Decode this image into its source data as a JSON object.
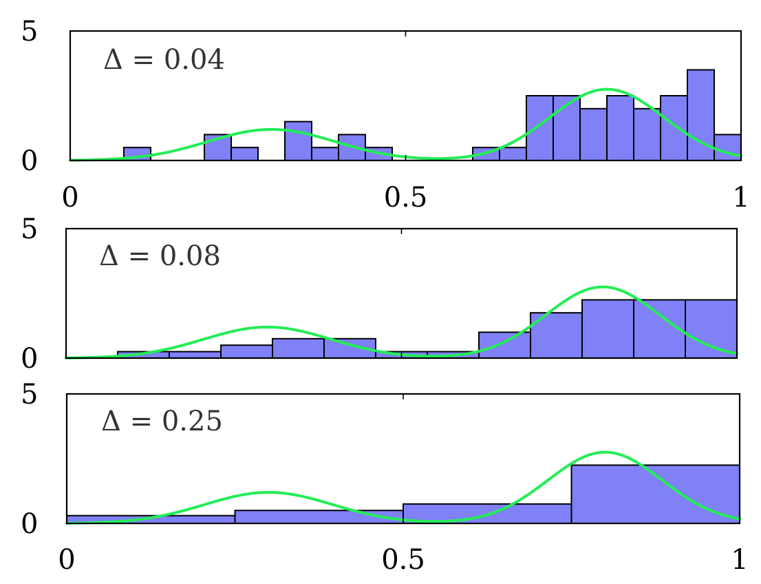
{
  "colors": {
    "bar": "#8080f7",
    "curve": "#22ee55",
    "axis": "#000000"
  },
  "chart_data": [
    {
      "type": "bar",
      "title": "Δ = 0.04",
      "xlim": [
        0,
        1
      ],
      "ylim": [
        0,
        5
      ],
      "xticks": [
        0,
        0.5,
        1
      ],
      "xtick_labels": [
        "0",
        "0.5",
        "1"
      ],
      "yticks": [
        0,
        5
      ],
      "ytick_labels": [
        "0",
        "5"
      ],
      "bin_width": 0.04,
      "bins": [
        {
          "x0": 0.08,
          "x1": 0.12,
          "y": 0.5
        },
        {
          "x0": 0.2,
          "x1": 0.24,
          "y": 1.0
        },
        {
          "x0": 0.24,
          "x1": 0.28,
          "y": 0.5
        },
        {
          "x0": 0.32,
          "x1": 0.36,
          "y": 1.5
        },
        {
          "x0": 0.36,
          "x1": 0.4,
          "y": 0.5
        },
        {
          "x0": 0.4,
          "x1": 0.44,
          "y": 1.0
        },
        {
          "x0": 0.44,
          "x1": 0.48,
          "y": 0.5
        },
        {
          "x0": 0.6,
          "x1": 0.64,
          "y": 0.5
        },
        {
          "x0": 0.64,
          "x1": 0.68,
          "y": 0.5
        },
        {
          "x0": 0.68,
          "x1": 0.72,
          "y": 2.5
        },
        {
          "x0": 0.72,
          "x1": 0.76,
          "y": 2.5
        },
        {
          "x0": 0.76,
          "x1": 0.8,
          "y": 2.0
        },
        {
          "x0": 0.8,
          "x1": 0.84,
          "y": 2.5
        },
        {
          "x0": 0.84,
          "x1": 0.88,
          "y": 2.0
        },
        {
          "x0": 0.88,
          "x1": 0.92,
          "y": 2.5
        },
        {
          "x0": 0.92,
          "x1": 0.96,
          "y": 3.5
        },
        {
          "x0": 0.96,
          "x1": 1.0,
          "y": 1.0
        }
      ]
    },
    {
      "type": "bar",
      "title": "Δ = 0.08",
      "xlim": [
        0,
        1
      ],
      "ylim": [
        0,
        5
      ],
      "xticks": [
        0,
        0.5,
        1
      ],
      "xtick_labels": [],
      "yticks": [
        0,
        5
      ],
      "ytick_labels": [
        "0",
        "5"
      ],
      "bin_width": 0.08,
      "bins": [
        {
          "x0": 0.0769,
          "x1": 0.1538,
          "y": 0.25
        },
        {
          "x0": 0.1538,
          "x1": 0.2308,
          "y": 0.25
        },
        {
          "x0": 0.2308,
          "x1": 0.3077,
          "y": 0.5
        },
        {
          "x0": 0.3077,
          "x1": 0.3846,
          "y": 0.75
        },
        {
          "x0": 0.3846,
          "x1": 0.4615,
          "y": 0.75
        },
        {
          "x0": 0.4615,
          "x1": 0.5385,
          "y": 0.25
        },
        {
          "x0": 0.5385,
          "x1": 0.6154,
          "y": 0.25
        },
        {
          "x0": 0.6154,
          "x1": 0.6923,
          "y": 1.0
        },
        {
          "x0": 0.6923,
          "x1": 0.7692,
          "y": 1.75
        },
        {
          "x0": 0.7692,
          "x1": 0.8462,
          "y": 2.25
        },
        {
          "x0": 0.8462,
          "x1": 0.9231,
          "y": 2.25
        },
        {
          "x0": 0.9231,
          "x1": 1.0,
          "y": 2.25
        }
      ]
    },
    {
      "type": "bar",
      "title": "Δ = 0.25",
      "xlim": [
        0,
        1
      ],
      "ylim": [
        0,
        5
      ],
      "xticks": [
        0,
        0.5,
        1
      ],
      "xtick_labels": [
        "0",
        "0.5",
        "1"
      ],
      "yticks": [
        0,
        5
      ],
      "ytick_labels": [
        "0",
        "5"
      ],
      "bin_width": 0.25,
      "bins": [
        {
          "x0": 0.0,
          "x1": 0.25,
          "y": 0.3
        },
        {
          "x0": 0.25,
          "x1": 0.5,
          "y": 0.5
        },
        {
          "x0": 0.5,
          "x1": 0.75,
          "y": 0.75
        },
        {
          "x0": 0.75,
          "x1": 1.0,
          "y": 2.25
        }
      ]
    }
  ],
  "curve": {
    "type": "line",
    "description_components": [
      {
        "mean": 0.3,
        "sd": 0.095,
        "peak": 1.2
      },
      {
        "mean": 0.8,
        "sd": 0.085,
        "peak": 2.75
      }
    ],
    "baseline": 0.08
  }
}
